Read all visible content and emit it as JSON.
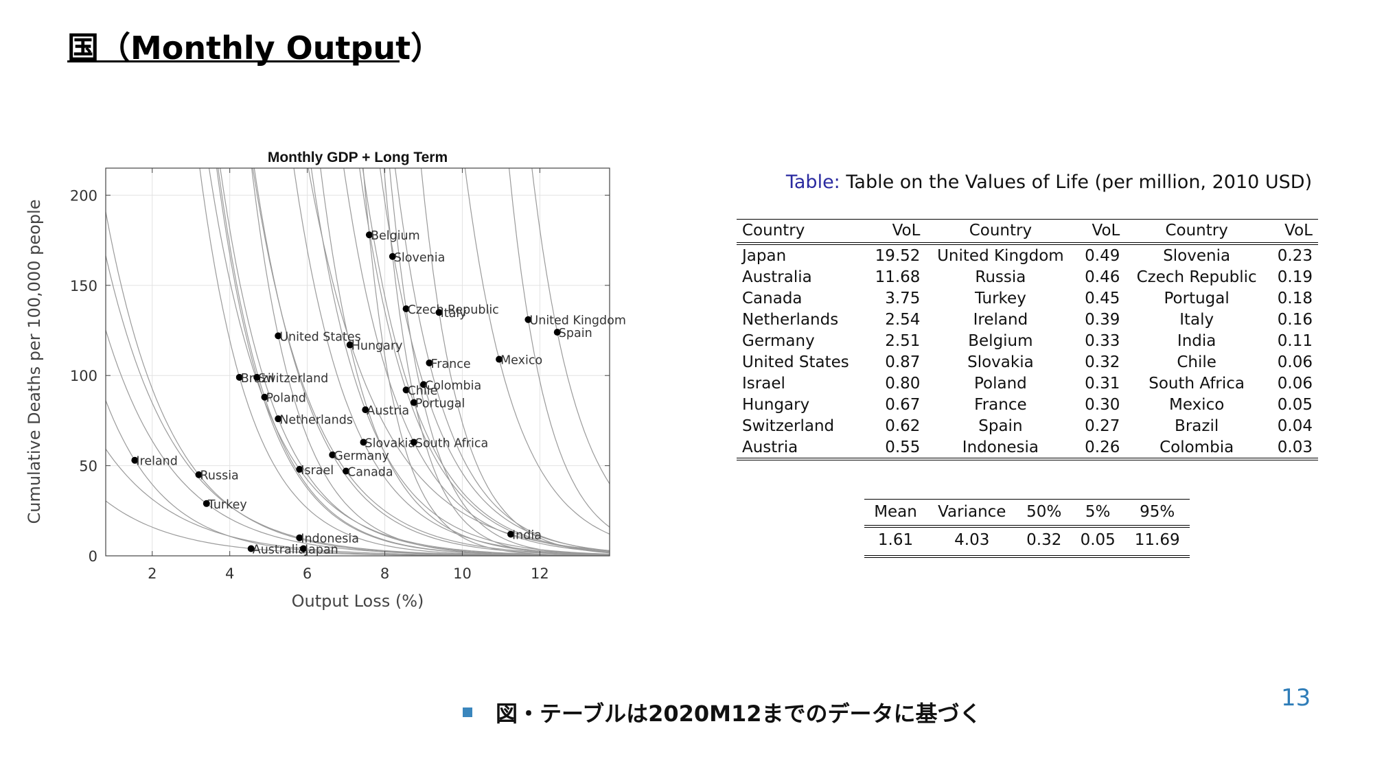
{
  "slide": {
    "title": "国（Monthly Output）",
    "note": "図・テーブルは2020M12までのデータに基づく",
    "page_number": "13"
  },
  "chart_data": {
    "type": "scatter",
    "title": "Monthly GDP + Long Term",
    "xlabel": "Output Loss (%)",
    "ylabel": "Cumulative Deaths per 100,000 people",
    "xlim": [
      0.8,
      13.8
    ],
    "ylim": [
      0,
      215
    ],
    "xticks": [
      2,
      4,
      6,
      8,
      10,
      12
    ],
    "yticks": [
      0,
      50,
      100,
      150,
      200
    ],
    "grid": true,
    "points": [
      {
        "label": "Belgium",
        "x": 7.6,
        "y": 178
      },
      {
        "label": "Slovenia",
        "x": 8.2,
        "y": 166
      },
      {
        "label": "Czech Republic",
        "x": 8.55,
        "y": 137
      },
      {
        "label": "Italy",
        "x": 9.4,
        "y": 135
      },
      {
        "label": "United Kingdom",
        "x": 11.7,
        "y": 131
      },
      {
        "label": "Spain",
        "x": 12.45,
        "y": 124
      },
      {
        "label": "United States",
        "x": 5.25,
        "y": 122
      },
      {
        "label": "Hungary",
        "x": 7.1,
        "y": 117
      },
      {
        "label": "France",
        "x": 9.15,
        "y": 107
      },
      {
        "label": "Mexico",
        "x": 10.95,
        "y": 109
      },
      {
        "label": "Brazil",
        "x": 4.25,
        "y": 99
      },
      {
        "label": "Switzerland",
        "x": 4.7,
        "y": 99
      },
      {
        "label": "Poland",
        "x": 4.9,
        "y": 88
      },
      {
        "label": "Colombia",
        "x": 9.0,
        "y": 95
      },
      {
        "label": "Chile",
        "x": 8.55,
        "y": 92
      },
      {
        "label": "Portugal",
        "x": 8.75,
        "y": 85
      },
      {
        "label": "Austria",
        "x": 7.5,
        "y": 81
      },
      {
        "label": "Netherlands",
        "x": 5.25,
        "y": 76
      },
      {
        "label": "Slovakia",
        "x": 7.45,
        "y": 63
      },
      {
        "label": "South Africa",
        "x": 8.75,
        "y": 63
      },
      {
        "label": "Germany",
        "x": 6.65,
        "y": 56
      },
      {
        "label": "Ireland",
        "x": 1.55,
        "y": 53
      },
      {
        "label": "Israel",
        "x": 5.8,
        "y": 48
      },
      {
        "label": "Canada",
        "x": 7.0,
        "y": 47
      },
      {
        "label": "Russia",
        "x": 3.2,
        "y": 45
      },
      {
        "label": "Turkey",
        "x": 3.4,
        "y": 29
      },
      {
        "label": "Indonesia",
        "x": 5.8,
        "y": 10
      },
      {
        "label": "India",
        "x": 11.25,
        "y": 12
      },
      {
        "label": "Australia",
        "x": 4.55,
        "y": 4
      },
      {
        "label": "Japan",
        "x": 5.9,
        "y": 4
      }
    ],
    "curves": [
      {
        "vol": 19.52
      },
      {
        "vol": 11.68
      },
      {
        "vol": 3.75
      },
      {
        "vol": 2.54
      },
      {
        "vol": 2.51
      },
      {
        "vol": 0.87
      },
      {
        "vol": 0.8
      },
      {
        "vol": 0.67
      },
      {
        "vol": 0.62
      },
      {
        "vol": 0.55
      },
      {
        "vol": 0.49
      },
      {
        "vol": 0.46
      },
      {
        "vol": 0.45
      },
      {
        "vol": 0.39
      },
      {
        "vol": 0.33
      },
      {
        "vol": 0.32
      },
      {
        "vol": 0.31
      },
      {
        "vol": 0.3
      },
      {
        "vol": 0.27
      },
      {
        "vol": 0.26
      },
      {
        "vol": 0.23
      },
      {
        "vol": 0.19
      },
      {
        "vol": 0.18
      },
      {
        "vol": 0.16
      },
      {
        "vol": 0.11
      },
      {
        "vol": 0.06
      },
      {
        "vol": 0.06
      },
      {
        "vol": 0.05
      },
      {
        "vol": 0.04
      },
      {
        "vol": 0.03
      }
    ]
  },
  "vol_table": {
    "caption_label": "Table:",
    "caption_text": "Table on the Values of Life (per million, 2010 USD)",
    "headers": [
      "Country",
      "VoL",
      "Country",
      "VoL",
      "Country",
      "VoL"
    ],
    "rows": [
      [
        "Japan",
        "19.52",
        "United Kingdom",
        "0.49",
        "Slovenia",
        "0.23"
      ],
      [
        "Australia",
        "11.68",
        "Russia",
        "0.46",
        "Czech Republic",
        "0.19"
      ],
      [
        "Canada",
        "3.75",
        "Turkey",
        "0.45",
        "Portugal",
        "0.18"
      ],
      [
        "Netherlands",
        "2.54",
        "Ireland",
        "0.39",
        "Italy",
        "0.16"
      ],
      [
        "Germany",
        "2.51",
        "Belgium",
        "0.33",
        "India",
        "0.11"
      ],
      [
        "United States",
        "0.87",
        "Slovakia",
        "0.32",
        "Chile",
        "0.06"
      ],
      [
        "Israel",
        "0.80",
        "Poland",
        "0.31",
        "South Africa",
        "0.06"
      ],
      [
        "Hungary",
        "0.67",
        "France",
        "0.30",
        "Mexico",
        "0.05"
      ],
      [
        "Switzerland",
        "0.62",
        "Spain",
        "0.27",
        "Brazil",
        "0.04"
      ],
      [
        "Austria",
        "0.55",
        "Indonesia",
        "0.26",
        "Colombia",
        "0.03"
      ]
    ]
  },
  "stats_table": {
    "headers": [
      "Mean",
      "Variance",
      "50%",
      "5%",
      "95%"
    ],
    "values": [
      "1.61",
      "4.03",
      "0.32",
      "0.05",
      "11.69"
    ]
  },
  "colors": {
    "accent": "#3a86bd",
    "caption_label": "#2a2aa0",
    "curve": "#9a9a9a",
    "grid": "#e2e2e2"
  }
}
